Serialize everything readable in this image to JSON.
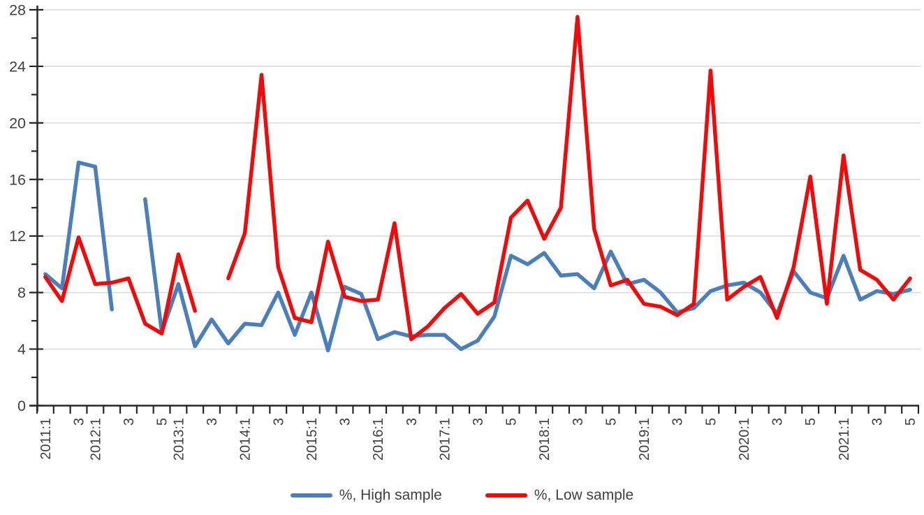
{
  "chart_data": {
    "type": "line",
    "categories": [
      "2011:1",
      "2011:2",
      "2011:3",
      "2012:1",
      "2012:2",
      "2012:3",
      "2012:4",
      "2012:5",
      "2013:1",
      "2013:2",
      "2013:3",
      "2013:4",
      "2014:1",
      "2014:2",
      "2014:3",
      "2014:4",
      "2015:1",
      "2015:2",
      "2015:3",
      "2015:4",
      "2016:1",
      "2016:2",
      "2016:3",
      "2016:4",
      "2017:1",
      "2017:2",
      "2017:3",
      "2017:4",
      "2017:5",
      "2017:6",
      "2018:1",
      "2018:2",
      "2018:3",
      "2018:4",
      "2018:5",
      "2018:6",
      "2019:1",
      "2019:2",
      "2019:3",
      "2019:4",
      "2019:5",
      "2019:6",
      "2020:1",
      "2020:2",
      "2020:3",
      "2020:4",
      "2020:5",
      "2020:6",
      "2021:1",
      "2021:2",
      "2021:3",
      "2021:4",
      "2021:5"
    ],
    "x_tick_labels": [
      {
        "i": 0,
        "label": "2011:1"
      },
      {
        "i": 2,
        "label": "3"
      },
      {
        "i": 3,
        "label": "2012:1"
      },
      {
        "i": 5,
        "label": "3"
      },
      {
        "i": 7,
        "label": "5"
      },
      {
        "i": 8,
        "label": "2013:1"
      },
      {
        "i": 10,
        "label": "3"
      },
      {
        "i": 12,
        "label": "2014:1"
      },
      {
        "i": 14,
        "label": "3"
      },
      {
        "i": 16,
        "label": "2015:1"
      },
      {
        "i": 18,
        "label": "3"
      },
      {
        "i": 20,
        "label": "2016:1"
      },
      {
        "i": 22,
        "label": "3"
      },
      {
        "i": 24,
        "label": "2017:1"
      },
      {
        "i": 26,
        "label": "3"
      },
      {
        "i": 28,
        "label": "5"
      },
      {
        "i": 30,
        "label": "2018:1"
      },
      {
        "i": 32,
        "label": "3"
      },
      {
        "i": 34,
        "label": "5"
      },
      {
        "i": 36,
        "label": "2019:1"
      },
      {
        "i": 38,
        "label": "3"
      },
      {
        "i": 40,
        "label": "5"
      },
      {
        "i": 42,
        "label": "2020:1"
      },
      {
        "i": 44,
        "label": "3"
      },
      {
        "i": 46,
        "label": "5"
      },
      {
        "i": 48,
        "label": "2021:1"
      },
      {
        "i": 50,
        "label": "3"
      },
      {
        "i": 52,
        "label": "5"
      }
    ],
    "y_tick_labels": [
      "0",
      "4",
      "8",
      "12",
      "16",
      "20",
      "24",
      "28"
    ],
    "ylim": [
      0,
      28
    ],
    "y_tick_step": 4,
    "y_minor_tick_step": 2,
    "grid": "horizontal",
    "legend_position": "bottom",
    "series": [
      {
        "name": "%, High sample",
        "color": "#4a7ebc",
        "values": [
          9.3,
          8.3,
          17.2,
          16.9,
          6.8,
          null,
          14.6,
          5.2,
          8.6,
          4.2,
          6.1,
          4.4,
          5.8,
          5.7,
          8.0,
          5.0,
          8.0,
          3.9,
          8.4,
          7.9,
          4.7,
          5.2,
          4.9,
          5.0,
          5.0,
          4.0,
          4.6,
          6.3,
          10.6,
          10.0,
          10.8,
          9.2,
          9.3,
          8.3,
          10.9,
          8.6,
          8.9,
          8.0,
          6.6,
          6.9,
          8.1,
          8.5,
          8.7,
          8.0,
          6.5,
          9.5,
          8.0,
          7.6,
          10.6,
          7.5,
          8.1,
          7.9,
          8.2
        ]
      },
      {
        "name": "%, Low sample",
        "color": "#f00a0a",
        "values": [
          9.1,
          7.4,
          11.9,
          8.6,
          8.7,
          9.0,
          5.8,
          5.1,
          10.7,
          6.7,
          null,
          9.0,
          12.2,
          23.4,
          9.8,
          6.2,
          5.9,
          11.6,
          7.7,
          7.4,
          7.5,
          12.9,
          4.7,
          5.6,
          6.9,
          7.9,
          6.5,
          7.3,
          13.3,
          14.5,
          11.8,
          14.0,
          27.5,
          12.5,
          8.5,
          8.9,
          7.2,
          7.0,
          6.4,
          7.2,
          23.7,
          7.5,
          8.4,
          9.1,
          6.2,
          9.8,
          16.2,
          7.2,
          17.7,
          9.6,
          8.9,
          7.5,
          9.0
        ]
      }
    ],
    "colors": {
      "axis": "#262626",
      "gridline": "#d9d9d9",
      "tick_label": "#404040",
      "background": "#ffffff"
    }
  }
}
